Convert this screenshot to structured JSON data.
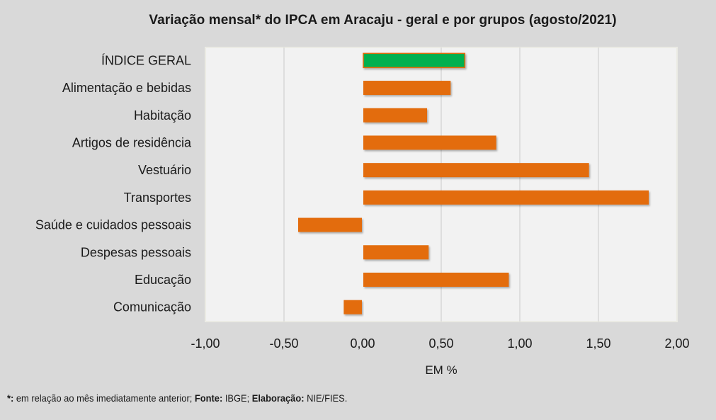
{
  "chart_data": {
    "type": "bar",
    "orientation": "horizontal",
    "title": "Variação  mensal*  do IPCA em Aracaju  - geral e por grupos  (agosto/2021)",
    "xlabel": "EM %",
    "ylabel": "",
    "xlim": [
      -1.0,
      2.0
    ],
    "xticks": [
      -1.0,
      -0.5,
      0.0,
      0.5,
      1.0,
      1.5,
      2.0
    ],
    "xtick_labels": [
      "-1,00",
      "-0,50",
      "0,00",
      "0,50",
      "1,00",
      "1,50",
      "2,00"
    ],
    "grid": "vertical",
    "legend": "none",
    "categories": [
      "ÍNDICE GERAL",
      "Alimentação e bebidas",
      "Habitação",
      "Artigos de residência",
      "Vestuário",
      "Transportes",
      "Saúde e cuidados pessoais",
      "Despesas pessoais",
      "Educação",
      "Comunicação"
    ],
    "values": [
      0.65,
      0.56,
      0.41,
      0.85,
      1.44,
      1.82,
      -0.41,
      0.42,
      0.93,
      -0.12
    ],
    "colors": {
      "highlight": "#00b050",
      "bar": "#e36c0a",
      "plot_background": "#f2f2f2",
      "page_background": "#d9d9d9",
      "gridline": "#d0d0d0"
    },
    "highlight_index": 0
  },
  "footnote": {
    "mark": "*:",
    "text1": " em relação ao mês imediatamente  anterior; ",
    "source_label": "Fonte:",
    "source": " IBGE; ",
    "author_label": "Elaboração:",
    "author": " NIE/FIES."
  }
}
